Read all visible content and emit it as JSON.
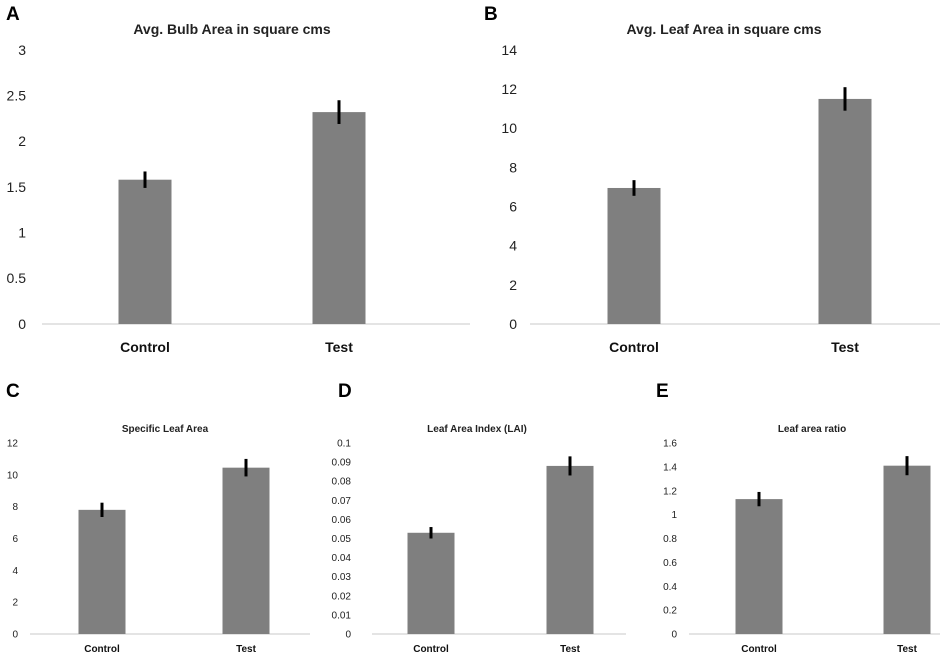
{
  "colors": {
    "bar": "#7f7f7f",
    "error": "#000000",
    "axis": "#c8c8c8",
    "text": "#222222"
  },
  "chart_data": [
    {
      "panel": "A",
      "type": "bar",
      "title": "Avg. Bulb Area in square cms",
      "categories": [
        "Control",
        "Test"
      ],
      "values": [
        1.58,
        2.32
      ],
      "errors": [
        0.09,
        0.13
      ],
      "yticks": [
        "0",
        "0.5",
        "1",
        "1.5",
        "2",
        "2.5",
        "3"
      ],
      "ylim": [
        0,
        3
      ],
      "xlabel": "",
      "ylabel": "",
      "grid": false
    },
    {
      "panel": "B",
      "type": "bar",
      "title": "Avg. Leaf Area in square cms",
      "categories": [
        "Control",
        "Test"
      ],
      "values": [
        6.95,
        11.5
      ],
      "errors": [
        0.4,
        0.6
      ],
      "yticks": [
        "0",
        "2",
        "4",
        "6",
        "8",
        "10",
        "12",
        "14"
      ],
      "ylim": [
        0,
        14
      ],
      "xlabel": "",
      "ylabel": "",
      "grid": false
    },
    {
      "panel": "C",
      "type": "bar",
      "title": "Specific Leaf Area",
      "categories": [
        "Control",
        "Test"
      ],
      "values": [
        7.8,
        10.45
      ],
      "errors": [
        0.45,
        0.55
      ],
      "yticks": [
        "0",
        "2",
        "4",
        "6",
        "8",
        "10",
        "12"
      ],
      "ylim": [
        0,
        12
      ],
      "xlabel": "",
      "ylabel": "",
      "grid": false
    },
    {
      "panel": "D",
      "type": "bar",
      "title": "Leaf Area Index (LAI)",
      "categories": [
        "Control",
        "Test"
      ],
      "values": [
        0.053,
        0.088
      ],
      "errors": [
        0.003,
        0.005
      ],
      "yticks": [
        "0",
        "0.01",
        "0.02",
        "0.03",
        "0.04",
        "0.05",
        "0.06",
        "0.07",
        "0.08",
        "0.09",
        "0.1"
      ],
      "ylim": [
        0,
        0.1
      ],
      "xlabel": "",
      "ylabel": "",
      "grid": false
    },
    {
      "panel": "E",
      "type": "bar",
      "title": "Leaf area ratio",
      "categories": [
        "Control",
        "Test"
      ],
      "values": [
        1.13,
        1.41
      ],
      "errors": [
        0.06,
        0.08
      ],
      "yticks": [
        "0",
        "0.2",
        "0.4",
        "0.6",
        "0.8",
        "1",
        "1.2",
        "1.4",
        "1.6"
      ],
      "ylim": [
        0,
        1.6
      ],
      "xlabel": "",
      "ylabel": "",
      "grid": false
    }
  ]
}
